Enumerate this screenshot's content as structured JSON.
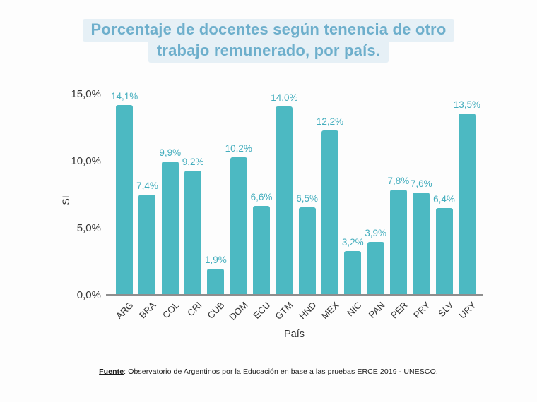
{
  "title": {
    "line1": "Porcentaje de docentes según tenencia de otro",
    "line2": "trabajo remunerado, por país."
  },
  "axes": {
    "x_title": "País",
    "y_title": "SI"
  },
  "footer": {
    "source_label": "Fuente",
    "source_text": ": Observatorio de Argentinos por la Educación en base a las pruebas ERCE 2019 - UNESCO."
  },
  "colors": {
    "bar": "#4cb9c2",
    "value_label": "#43adbd",
    "title_text": "#6eafcc",
    "title_highlight": "#e6f0f6",
    "gridline": "#d9d9d9",
    "axis_line": "#8e8e8e",
    "tick_text": "#333333"
  },
  "chart_data": {
    "type": "bar",
    "title": "Porcentaje de docentes según tenencia de otro trabajo remunerado, por país.",
    "xlabel": "País",
    "ylabel": "SI",
    "categories": [
      "ARG",
      "BRA",
      "COL",
      "CRI",
      "CUB",
      "DOM",
      "ECU",
      "GTM",
      "HND",
      "MEX",
      "NIC",
      "PAN",
      "PER",
      "PRY",
      "SLV",
      "URY"
    ],
    "values": [
      14.1,
      7.4,
      9.9,
      9.2,
      1.9,
      10.2,
      6.6,
      14.0,
      6.5,
      12.2,
      3.2,
      3.9,
      7.8,
      7.6,
      6.4,
      13.5
    ],
    "value_labels": [
      "14,1%",
      "7,4%",
      "9,9%",
      "9,2%",
      "1,9%",
      "10,2%",
      "6,6%",
      "14,0%",
      "6,5%",
      "12,2%",
      "3,2%",
      "3,9%",
      "7,8%",
      "7,6%",
      "6,4%",
      "13,5%"
    ],
    "y_tick_values": [
      15,
      10,
      5,
      0
    ],
    "y_tick_labels": [
      "15,0%",
      "10,0%",
      "5,0%",
      "0,0%"
    ],
    "ylim": [
      0,
      15
    ],
    "grid": true,
    "legend": "none"
  }
}
